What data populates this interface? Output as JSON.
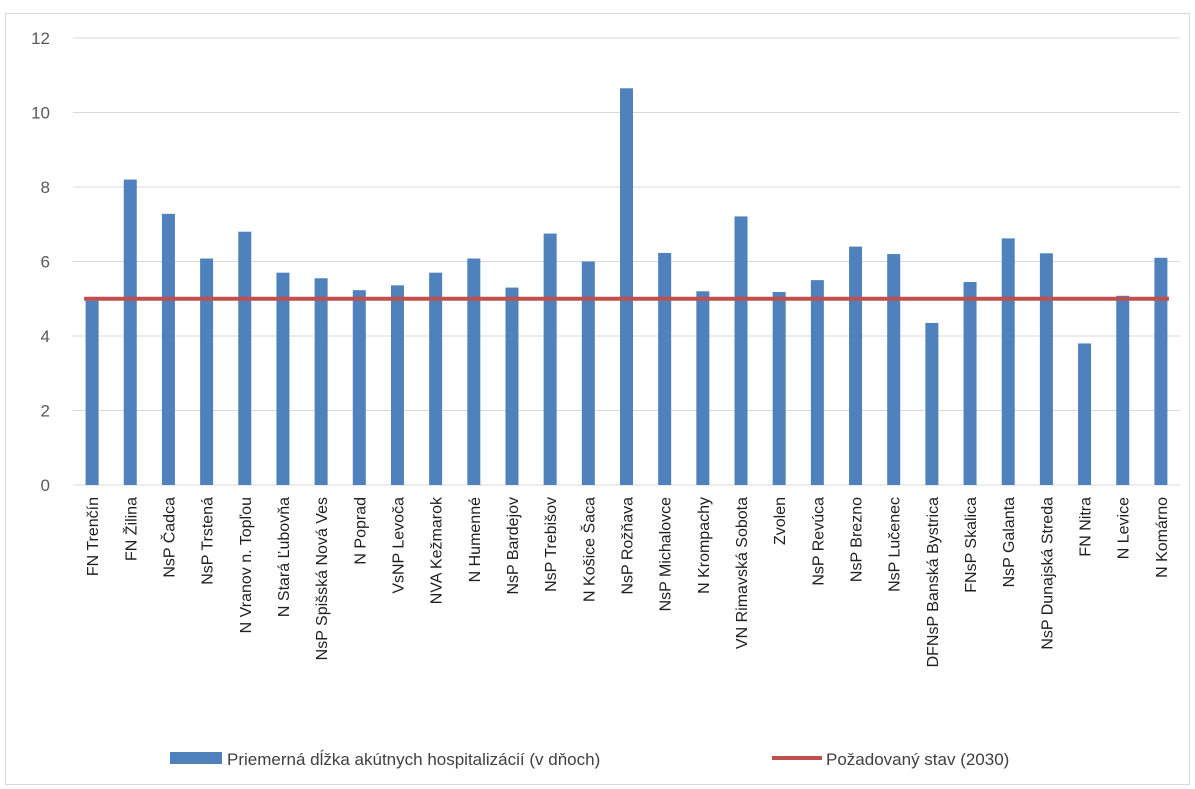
{
  "chart_data": {
    "type": "bar",
    "categories": [
      "FN Trenčín",
      "FN Žilina",
      "NsP Čadca",
      "NsP Trstená",
      "N Vranov n. Topľou",
      "N Stará Ľubovňa",
      "NsP Spišská Nová Ves",
      "N Poprad",
      "VsNP Levoča",
      "NVA Kežmarok",
      "N Humenné",
      "NsP Bardejov",
      "NsP Trebišov",
      "N Košice Šaca",
      "NsP Rožňava",
      "NsP Michalovce",
      "N Krompachy",
      "VN Rimavská Sobota",
      "Zvolen",
      "NsP Revúca",
      "NsP Brezno",
      "NsP Lučenec",
      "DFNsP Banská Bystrica",
      "FNsP Skalica",
      "NsP Galanta",
      "NsP Dunajská Streda",
      "FN Nitra",
      "N Levice",
      "N Komárno"
    ],
    "series": [
      {
        "name": "Priemerná dĺžka akútnych hospitalizácií (v dňoch)",
        "type": "bar",
        "color": "#4f81bd",
        "values": [
          4.95,
          8.2,
          7.28,
          6.08,
          6.8,
          5.7,
          5.55,
          5.23,
          5.36,
          5.7,
          6.08,
          5.3,
          6.75,
          6.0,
          10.65,
          6.23,
          5.2,
          7.21,
          5.18,
          5.5,
          6.4,
          6.2,
          4.35,
          5.45,
          6.62,
          6.22,
          3.8,
          5.08,
          6.1
        ]
      },
      {
        "name": "Požadovaný stav (2030)",
        "type": "line",
        "color": "#c0504d",
        "value": 5
      }
    ],
    "yticks": [
      "0",
      "2",
      "4",
      "6",
      "8",
      "10",
      "12"
    ],
    "ylim": [
      0,
      12
    ],
    "grid": true,
    "legend_position": "bottom"
  }
}
